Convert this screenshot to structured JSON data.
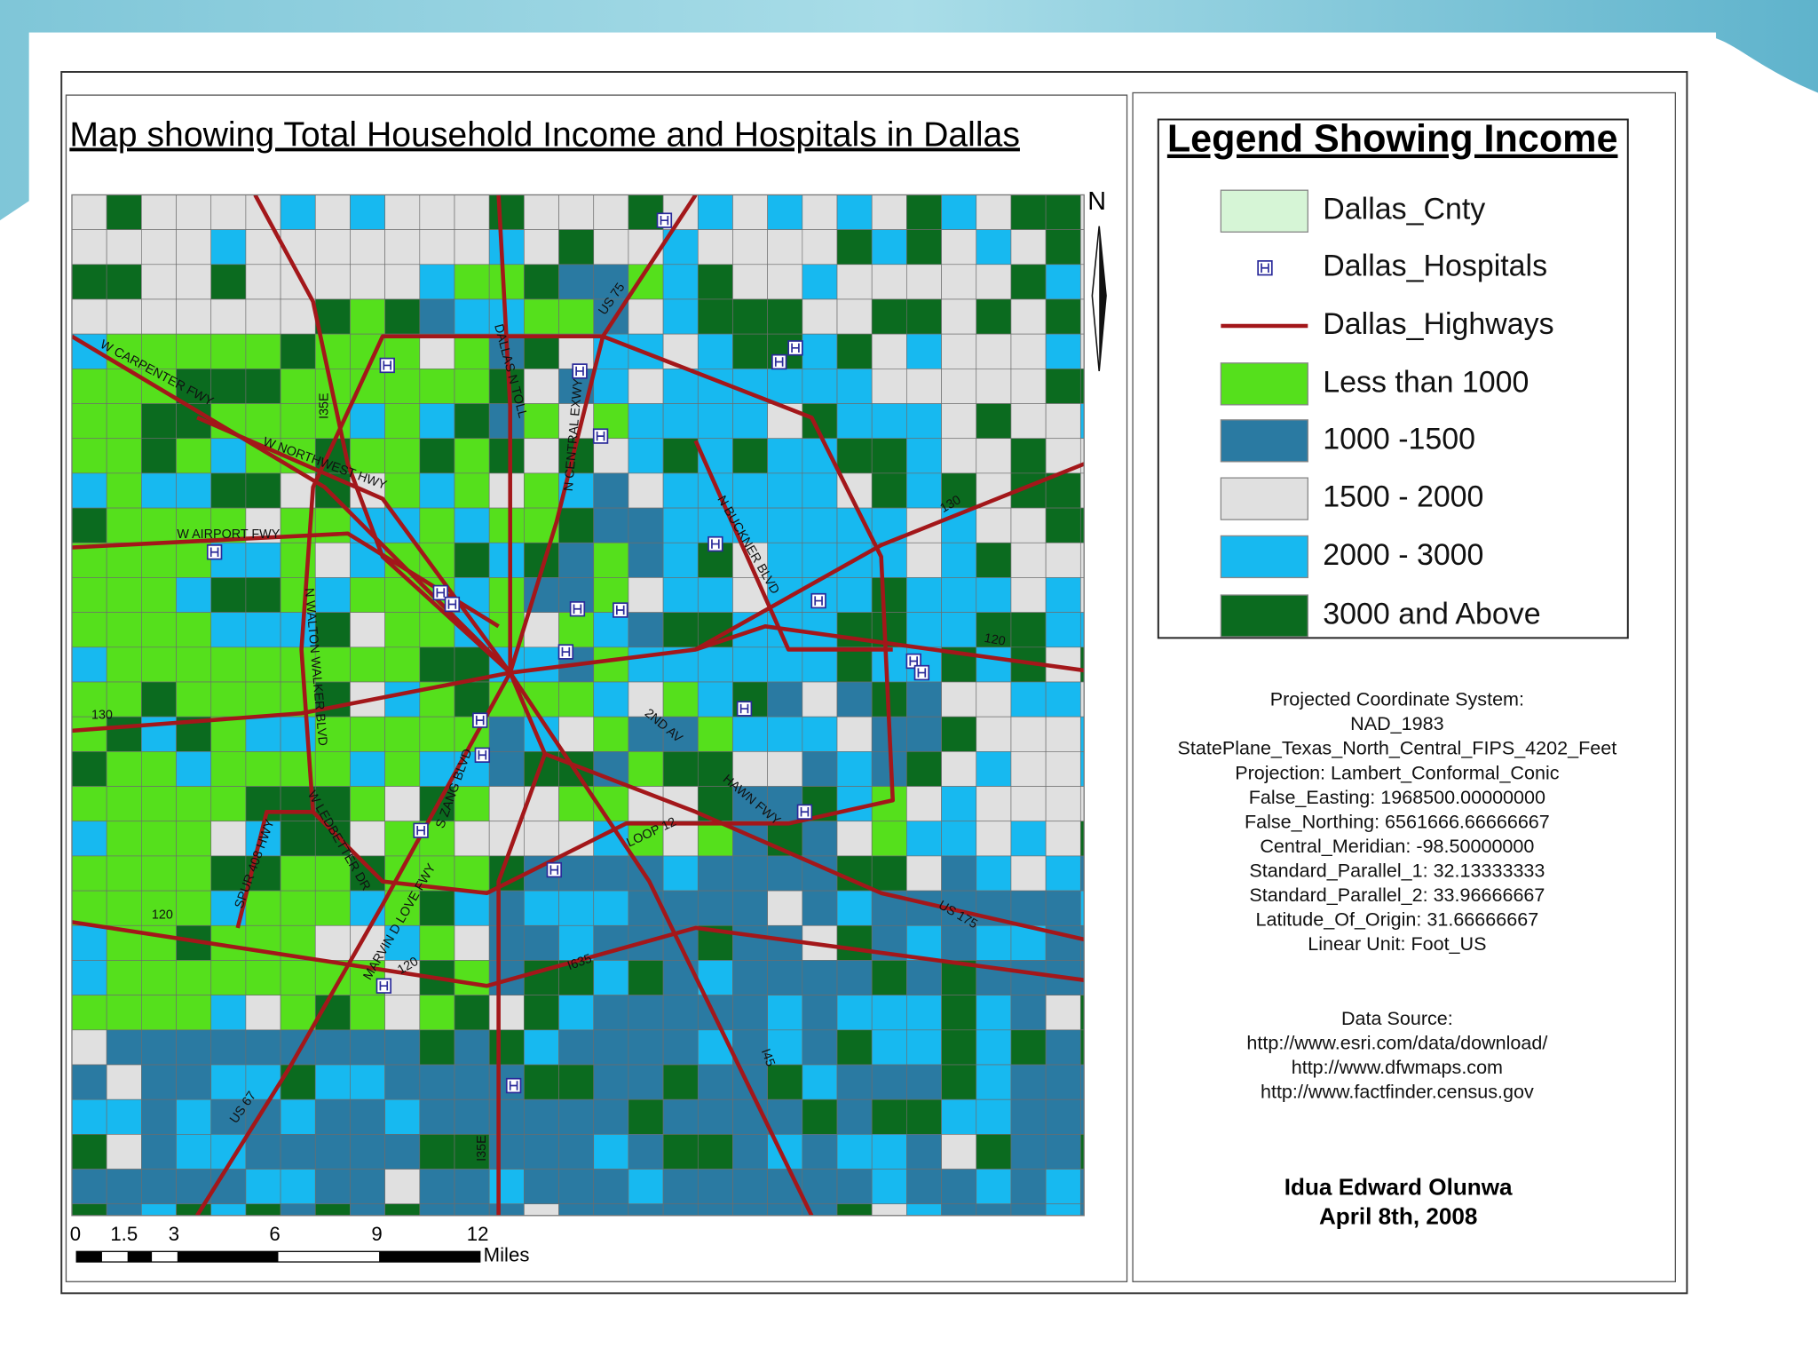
{
  "title": "Map showing Total Household Income and Hospitals in Dallas",
  "north_label": "N",
  "highway_labels": [
    "W CARPENTER FWY",
    "W NORTHWEST HWY",
    "I35E",
    "DALLAS N TOLL",
    "N CENTRAL EXWY",
    "US 75",
    "W AIRPORT FWY",
    "N WALTON WALKER BLVD",
    "N BUCKNER BLVD",
    "130",
    "120",
    "130",
    "2ND AV",
    "HAWN FWY",
    "LOOP 12",
    "S ZANG BLVD",
    "W LEDBETTER DR",
    "MARVIN D LOVE FWY",
    "SPUR 408 HWY",
    "120",
    "120",
    "I635",
    "US 175",
    "I45",
    "US 67",
    "I35E"
  ],
  "legend": {
    "title": "Legend Showing Income",
    "items": [
      {
        "label": "Dallas_Cnty",
        "color": "#d6f5d6"
      },
      {
        "label": "Dallas_Hospitals",
        "color": "#2a2a9a"
      },
      {
        "label": "Dallas_Highways",
        "color": "#a3171a"
      },
      {
        "label": "Less than 1000",
        "color": "#55e01c"
      },
      {
        "label": "1000 -1500",
        "color": "#2a7aa2"
      },
      {
        "label": "1500 - 2000",
        "color": "#e0e0e0"
      },
      {
        "label": "2000 - 3000",
        "color": "#17b9f0"
      },
      {
        "label": "3000 and Above",
        "color": "#0b6b1f"
      }
    ]
  },
  "projection": [
    "Projected Coordinate System:",
    "NAD_1983",
    "StatePlane_Texas_North_Central_FIPS_4202_Feet",
    "Projection: Lambert_Conformal_Conic",
    "False_Easting: 1968500.00000000",
    "False_Northing: 6561666.66666667",
    "Central_Meridian: -98.50000000",
    "Standard_Parallel_1: 32.13333333",
    "Standard_Parallel_2: 33.96666667",
    "Latitude_Of_Origin: 31.66666667",
    "Linear Unit: Foot_US"
  ],
  "data_source": [
    "Data Source:",
    "http://www.esri.com/data/download/",
    "http://www.dfwmaps.com",
    "http://www.factfinder.census.gov"
  ],
  "author": "Idua Edward Olunwa",
  "date": "April 8th, 2008",
  "scale_bar": {
    "ticks": [
      "0",
      "1.5",
      "3",
      "6",
      "9",
      "12"
    ],
    "unit": "Miles"
  }
}
